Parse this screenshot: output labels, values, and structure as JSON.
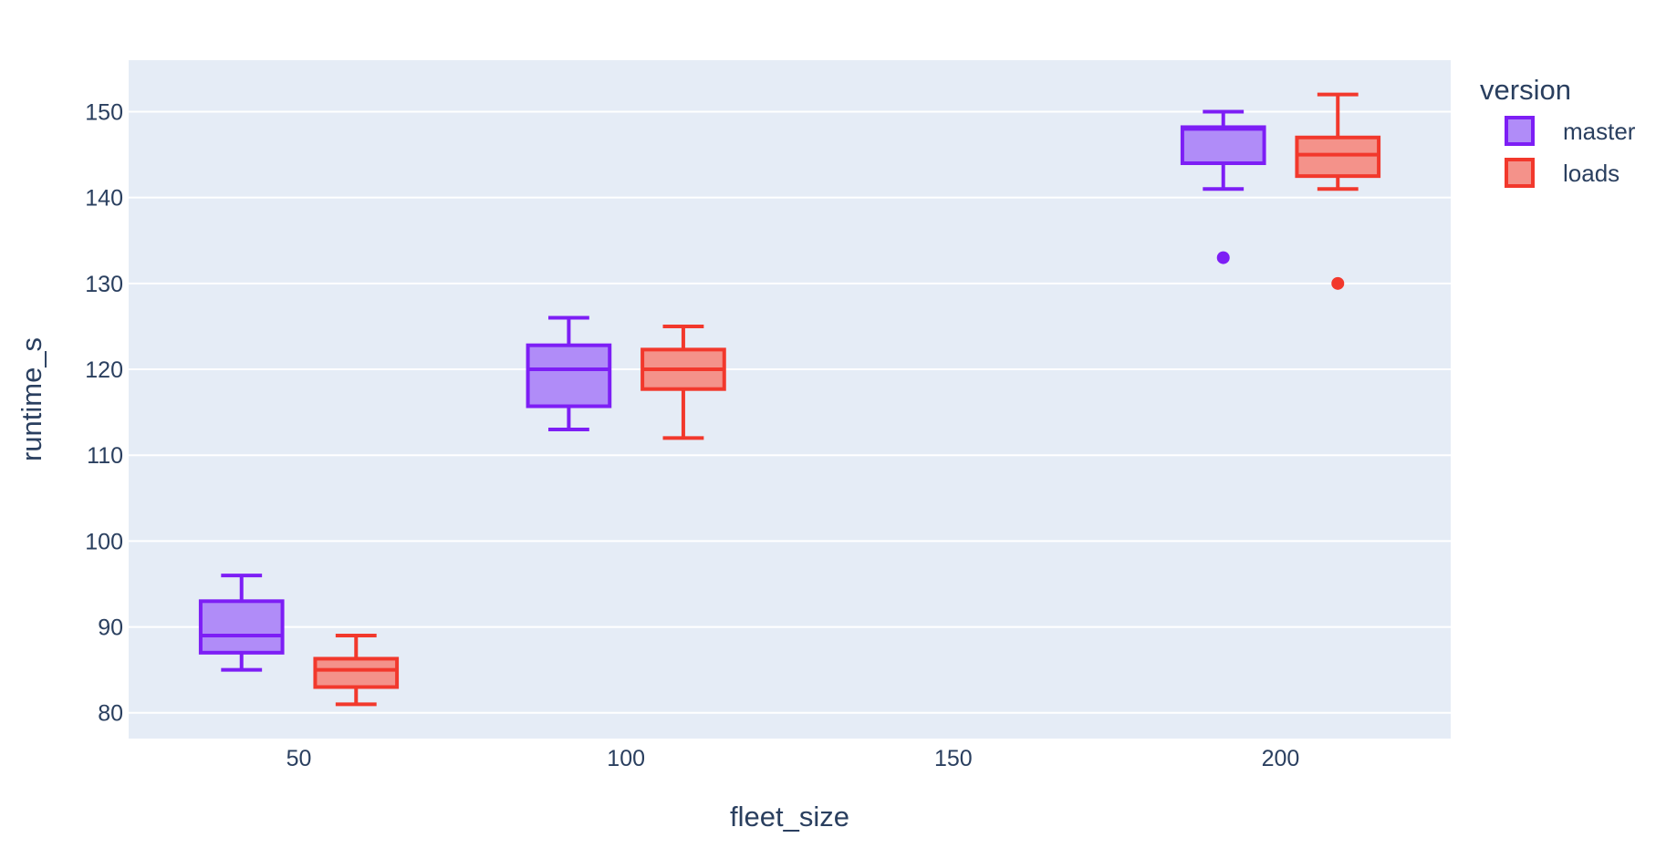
{
  "chart_data": {
    "type": "box",
    "xlabel": "fleet_size",
    "ylabel": "runtime_s",
    "xlim": [
      24,
      226
    ],
    "ylim": [
      77,
      156
    ],
    "x_ticks": [
      50,
      100,
      150,
      200
    ],
    "y_ticks": [
      80,
      90,
      100,
      110,
      120,
      130,
      140,
      150
    ],
    "grid": true,
    "legend": {
      "title": "version",
      "position": "right"
    },
    "box_width": 12.5,
    "offset": 8.75,
    "series": [
      {
        "name": "master",
        "color": "#7d1ef5",
        "fill": "#b08cf8",
        "boxes": [
          {
            "x": 50,
            "lower_whisker": 85,
            "q1": 87,
            "median": 89,
            "q3": 93,
            "upper_whisker": 96,
            "outliers": []
          },
          {
            "x": 100,
            "lower_whisker": 113,
            "q1": 115.7,
            "median": 120,
            "q3": 122.8,
            "upper_whisker": 126,
            "outliers": []
          },
          {
            "x": 200,
            "lower_whisker": 141,
            "q1": 144,
            "median": 148,
            "q3": 148.2,
            "upper_whisker": 150,
            "outliers": [
              133
            ]
          }
        ]
      },
      {
        "name": "loads",
        "color": "#f2382c",
        "fill": "#f4928a",
        "boxes": [
          {
            "x": 50,
            "lower_whisker": 81,
            "q1": 83,
            "median": 85,
            "q3": 86.3,
            "upper_whisker": 89,
            "outliers": []
          },
          {
            "x": 100,
            "lower_whisker": 112,
            "q1": 117.7,
            "median": 120,
            "q3": 122.3,
            "upper_whisker": 125,
            "outliers": []
          },
          {
            "x": 200,
            "lower_whisker": 141,
            "q1": 142.5,
            "median": 145,
            "q3": 147,
            "upper_whisker": 152,
            "outliers": [
              130
            ]
          }
        ]
      }
    ]
  }
}
